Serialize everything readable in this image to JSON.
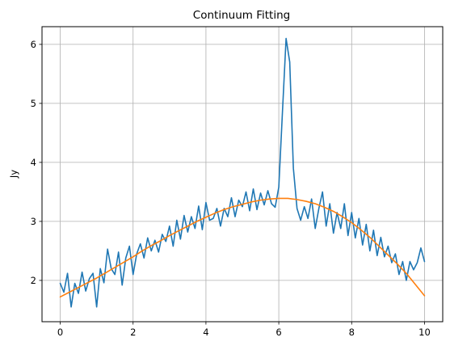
{
  "chart_data": {
    "type": "line",
    "title": "Continuum Fitting",
    "xlabel": "",
    "ylabel": "Jy",
    "xlim": [
      -0.5,
      10.5
    ],
    "ylim": [
      1.3,
      6.3
    ],
    "xticks": [
      0,
      2,
      4,
      6,
      8,
      10
    ],
    "yticks": [
      2,
      3,
      4,
      5,
      6
    ],
    "grid": true,
    "legend": false,
    "series": [
      {
        "color": "#1f77b4",
        "x": [
          0.0,
          0.1,
          0.2,
          0.3,
          0.4,
          0.5,
          0.6,
          0.7,
          0.8,
          0.9,
          1.0,
          1.1,
          1.2,
          1.3,
          1.4,
          1.5,
          1.6,
          1.7,
          1.8,
          1.9,
          2.0,
          2.1,
          2.2,
          2.3,
          2.4,
          2.5,
          2.6,
          2.7,
          2.8,
          2.9,
          3.0,
          3.1,
          3.2,
          3.3,
          3.4,
          3.5,
          3.6,
          3.7,
          3.8,
          3.9,
          4.0,
          4.1,
          4.2,
          4.3,
          4.4,
          4.5,
          4.6,
          4.7,
          4.8,
          4.9,
          5.0,
          5.1,
          5.2,
          5.3,
          5.4,
          5.5,
          5.6,
          5.7,
          5.8,
          5.9,
          6.0,
          6.1,
          6.2,
          6.3,
          6.4,
          6.5,
          6.6,
          6.7,
          6.8,
          6.9,
          7.0,
          7.1,
          7.2,
          7.3,
          7.4,
          7.5,
          7.6,
          7.7,
          7.8,
          7.9,
          8.0,
          8.1,
          8.2,
          8.3,
          8.4,
          8.5,
          8.6,
          8.7,
          8.8,
          8.9,
          9.0,
          9.1,
          9.2,
          9.3,
          9.4,
          9.5,
          9.6,
          9.7,
          9.8,
          9.9,
          10.0
        ],
        "y": [
          1.95,
          1.8,
          2.12,
          1.55,
          1.95,
          1.78,
          2.14,
          1.82,
          2.03,
          2.12,
          1.55,
          2.2,
          1.96,
          2.53,
          2.2,
          2.1,
          2.48,
          1.92,
          2.38,
          2.58,
          2.1,
          2.45,
          2.62,
          2.38,
          2.72,
          2.5,
          2.68,
          2.48,
          2.78,
          2.66,
          2.92,
          2.58,
          3.02,
          2.7,
          3.1,
          2.82,
          3.08,
          2.88,
          3.26,
          2.86,
          3.32,
          3.02,
          3.05,
          3.22,
          2.92,
          3.22,
          3.08,
          3.4,
          3.08,
          3.36,
          3.25,
          3.5,
          3.18,
          3.55,
          3.2,
          3.48,
          3.28,
          3.52,
          3.3,
          3.24,
          3.58,
          4.85,
          6.1,
          5.7,
          3.9,
          3.22,
          3.02,
          3.25,
          3.05,
          3.38,
          2.88,
          3.22,
          3.5,
          2.92,
          3.3,
          2.8,
          3.15,
          2.88,
          3.3,
          2.76,
          3.15,
          2.72,
          3.05,
          2.6,
          2.95,
          2.5,
          2.85,
          2.42,
          2.73,
          2.4,
          2.58,
          2.3,
          2.45,
          2.1,
          2.32,
          2.0,
          2.32,
          2.18,
          2.3,
          2.55,
          2.32
        ]
      },
      {
        "color": "#ff7f0e",
        "x": [
          0.0,
          0.25,
          0.5,
          0.75,
          1.0,
          1.25,
          1.5,
          1.75,
          2.0,
          2.25,
          2.5,
          2.75,
          3.0,
          3.25,
          3.5,
          3.75,
          4.0,
          4.25,
          4.5,
          4.75,
          5.0,
          5.25,
          5.5,
          5.75,
          6.0,
          6.25,
          6.5,
          6.75,
          7.0,
          7.25,
          7.5,
          7.75,
          8.0,
          8.25,
          8.5,
          8.75,
          9.0,
          9.25,
          9.5,
          9.75,
          10.0
        ],
        "y": [
          1.72,
          1.8,
          1.88,
          1.96,
          2.04,
          2.13,
          2.22,
          2.31,
          2.4,
          2.5,
          2.59,
          2.67,
          2.76,
          2.84,
          2.92,
          3.0,
          3.07,
          3.14,
          3.2,
          3.25,
          3.29,
          3.33,
          3.36,
          3.38,
          3.39,
          3.39,
          3.37,
          3.34,
          3.3,
          3.24,
          3.17,
          3.08,
          2.98,
          2.86,
          2.73,
          2.58,
          2.43,
          2.28,
          2.12,
          1.93,
          1.74
        ]
      }
    ]
  }
}
